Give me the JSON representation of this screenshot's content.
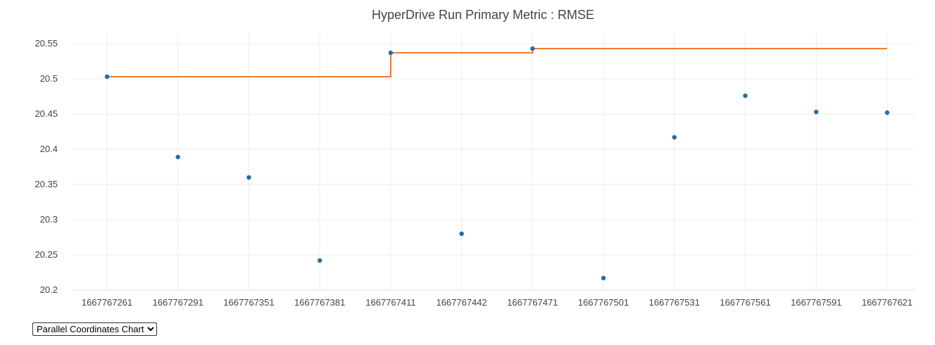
{
  "chart_data": {
    "type": "scatter",
    "title": "HyperDrive Run Primary Metric : RMSE",
    "xlabel": "",
    "ylabel": "",
    "x_axis_type": "category",
    "categories": [
      "1667767261",
      "1667767291",
      "1667767351",
      "1667767381",
      "1667767411",
      "1667767442",
      "1667767471",
      "1667767501",
      "1667767531",
      "1667767561",
      "1667767591",
      "1667767621"
    ],
    "ylim": [
      20.2,
      20.56
    ],
    "yticks": [
      20.2,
      20.25,
      20.3,
      20.35,
      20.4,
      20.45,
      20.5,
      20.55
    ],
    "ytick_labels": [
      "20.2",
      "20.25",
      "20.3",
      "20.35",
      "20.4",
      "20.45",
      "20.5",
      "20.55"
    ],
    "grid": true,
    "legend": "none",
    "series": [
      {
        "mode": "markers",
        "color": "#1f6fa8",
        "values": [
          20.503,
          20.389,
          20.36,
          20.242,
          20.537,
          20.28,
          20.543,
          20.217,
          20.417,
          20.476,
          20.453,
          20.452
        ]
      },
      {
        "mode": "step",
        "color": "#f47b2f",
        "values": [
          20.503,
          20.503,
          20.503,
          20.503,
          20.537,
          20.537,
          20.543,
          20.543,
          20.543,
          20.543,
          20.543,
          20.543
        ]
      }
    ]
  },
  "controls": {
    "view_select": {
      "selected": "Parallel Coordinates Chart",
      "options": [
        "Parallel Coordinates Chart"
      ]
    }
  }
}
